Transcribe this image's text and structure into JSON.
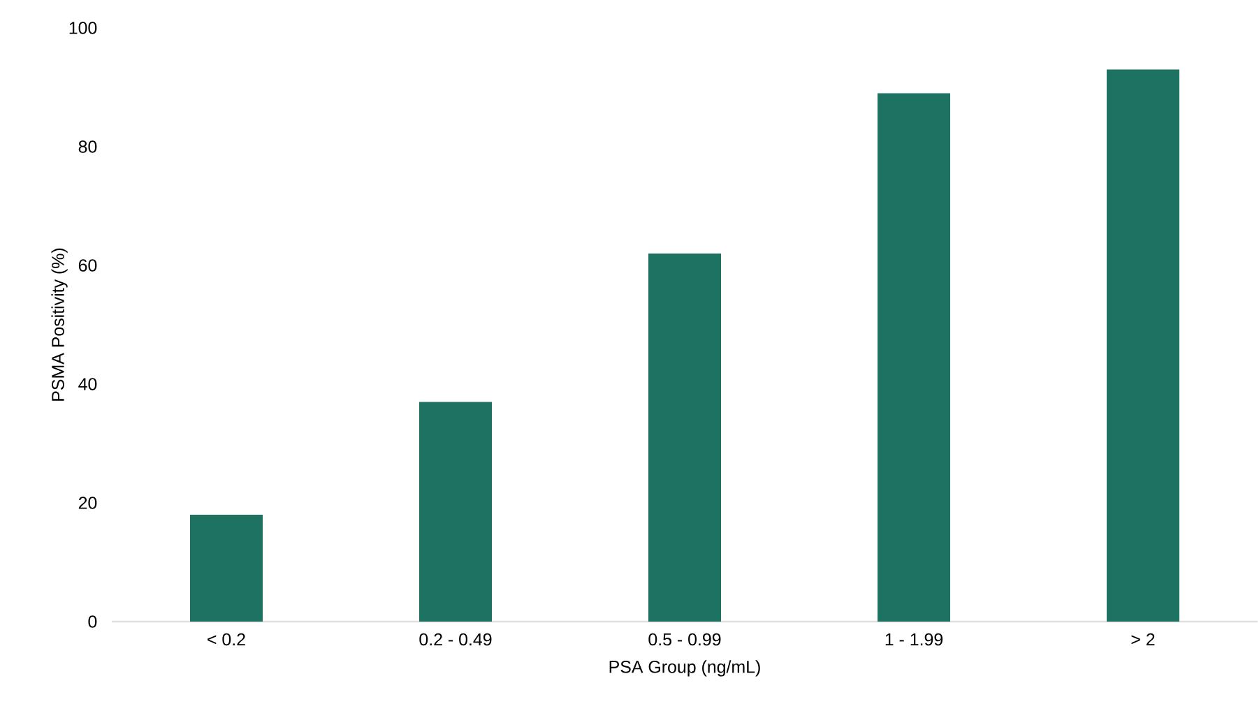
{
  "chart_data": {
    "type": "bar",
    "xlabel": "PSA Group (ng/mL)",
    "ylabel": "PSMA Positivity (%)",
    "categories": [
      "< 0.2",
      "0.2 - 0.49",
      "0.5 - 0.99",
      "1 - 1.99",
      "> 2"
    ],
    "values": [
      18,
      37,
      62,
      89,
      93
    ],
    "color": "#1e7261",
    "ylim": [
      0,
      100
    ],
    "yticks": [
      0,
      20,
      40,
      60,
      80,
      100
    ]
  }
}
